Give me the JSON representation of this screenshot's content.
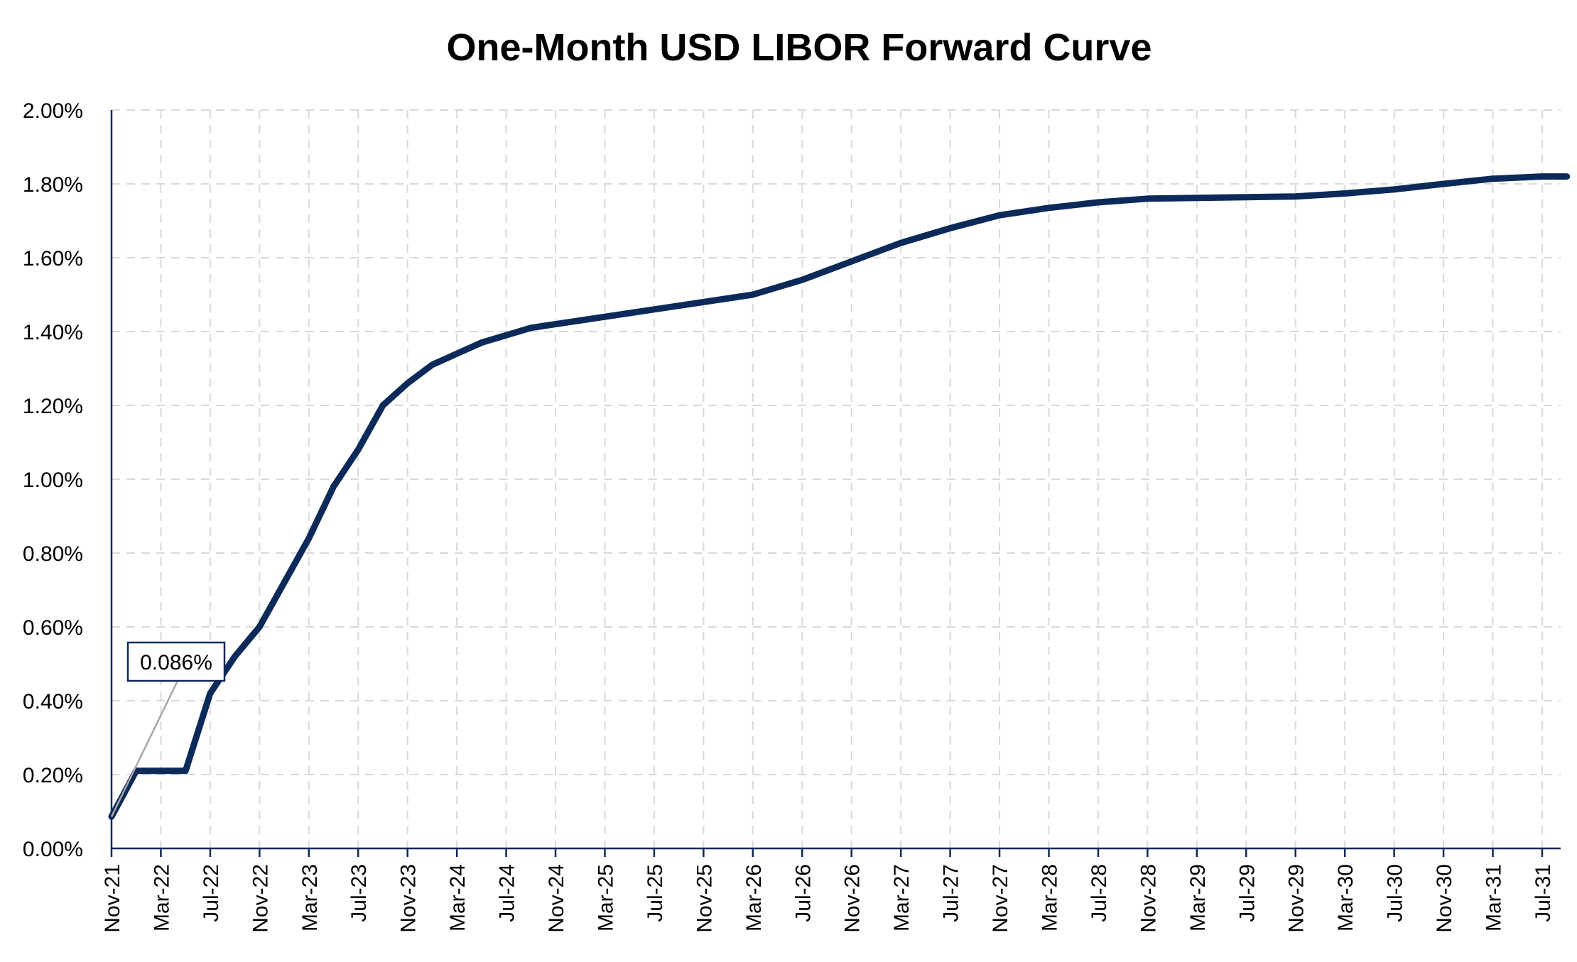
{
  "chart_data": {
    "type": "line",
    "title": "One-Month USD LIBOR Forward Curve",
    "xlabel": "",
    "ylabel": "",
    "x_tick_labels": [
      "Nov-21",
      "Mar-22",
      "Jul-22",
      "Nov-22",
      "Mar-23",
      "Jul-23",
      "Nov-23",
      "Mar-24",
      "Jul-24",
      "Nov-24",
      "Mar-25",
      "Jul-25",
      "Nov-25",
      "Mar-26",
      "Jul-26",
      "Nov-26",
      "Mar-27",
      "Jul-27",
      "Nov-27",
      "Mar-28",
      "Jul-28",
      "Nov-28",
      "Mar-29",
      "Jul-29",
      "Nov-29",
      "Mar-30",
      "Jul-30",
      "Nov-30",
      "Mar-31",
      "Jul-31"
    ],
    "y_tick_labels": [
      "0.00%",
      "0.20%",
      "0.40%",
      "0.60%",
      "0.80%",
      "1.00%",
      "1.20%",
      "1.40%",
      "1.60%",
      "1.80%",
      "2.00%"
    ],
    "ylim": [
      0,
      2.0
    ],
    "y_unit": "%",
    "grid": true,
    "grid_style": "dashed",
    "series": [
      {
        "color": "#0b2a5a",
        "points": [
          {
            "x": "Nov-21",
            "y": 0.086
          },
          {
            "x": "Jan-22",
            "y": 0.21
          },
          {
            "x": "Mar-22",
            "y": 0.21
          },
          {
            "x": "May-22",
            "y": 0.21
          },
          {
            "x": "Jul-22",
            "y": 0.42
          },
          {
            "x": "Sep-22",
            "y": 0.52
          },
          {
            "x": "Nov-22",
            "y": 0.6
          },
          {
            "x": "Jan-23",
            "y": 0.72
          },
          {
            "x": "Mar-23",
            "y": 0.84
          },
          {
            "x": "May-23",
            "y": 0.98
          },
          {
            "x": "Jul-23",
            "y": 1.08
          },
          {
            "x": "Sep-23",
            "y": 1.2
          },
          {
            "x": "Nov-23",
            "y": 1.26
          },
          {
            "x": "Jan-24",
            "y": 1.31
          },
          {
            "x": "Mar-24",
            "y": 1.34
          },
          {
            "x": "May-24",
            "y": 1.37
          },
          {
            "x": "Jul-24",
            "y": 1.39
          },
          {
            "x": "Sep-24",
            "y": 1.41
          },
          {
            "x": "Nov-24",
            "y": 1.42
          },
          {
            "x": "Mar-25",
            "y": 1.44
          },
          {
            "x": "Jul-25",
            "y": 1.46
          },
          {
            "x": "Nov-25",
            "y": 1.48
          },
          {
            "x": "Mar-26",
            "y": 1.5
          },
          {
            "x": "Jul-26",
            "y": 1.54
          },
          {
            "x": "Nov-26",
            "y": 1.59
          },
          {
            "x": "Mar-27",
            "y": 1.64
          },
          {
            "x": "Jul-27",
            "y": 1.68
          },
          {
            "x": "Nov-27",
            "y": 1.715
          },
          {
            "x": "Mar-28",
            "y": 1.735
          },
          {
            "x": "Jul-28",
            "y": 1.75
          },
          {
            "x": "Nov-28",
            "y": 1.76
          },
          {
            "x": "Mar-29",
            "y": 1.762
          },
          {
            "x": "Jul-29",
            "y": 1.764
          },
          {
            "x": "Nov-29",
            "y": 1.766
          },
          {
            "x": "Mar-30",
            "y": 1.774
          },
          {
            "x": "Jul-30",
            "y": 1.785
          },
          {
            "x": "Nov-30",
            "y": 1.8
          },
          {
            "x": "Mar-31",
            "y": 1.814
          },
          {
            "x": "Jul-31",
            "y": 1.82
          },
          {
            "x": "Sep-31",
            "y": 1.82
          }
        ]
      }
    ],
    "annotation": {
      "text": "0.086%",
      "x": "Nov-21",
      "y": 0.086
    }
  }
}
